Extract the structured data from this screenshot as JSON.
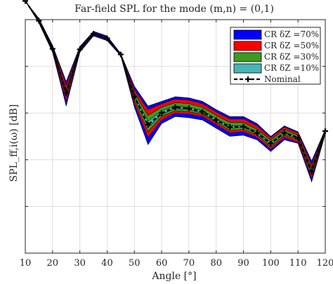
{
  "chart_data": {
    "type": "line",
    "title": "Far-field SPL for the mode (m,n) = (0,1)",
    "xlabel": "Angle [°]",
    "ylabel": "SPL_ff,i(ω) [dB]",
    "xlim": [
      10,
      120
    ],
    "ylim": [
      0,
      10
    ],
    "x_ticks": [
      10,
      20,
      30,
      40,
      50,
      60,
      70,
      80,
      90,
      100,
      110,
      120
    ],
    "y_tick_values": [
      0,
      2,
      4,
      6,
      8
    ],
    "grid": true,
    "legend_position": "top-right",
    "x": [
      10,
      15,
      20,
      25,
      30,
      35,
      40,
      45,
      50,
      55,
      60,
      65,
      70,
      75,
      80,
      85,
      90,
      95,
      100,
      105,
      110,
      115,
      120
    ],
    "series": [
      {
        "name": "CR δZ =70%",
        "color": "#0000ff",
        "upper": [
          10.8,
          10.05,
          8.9,
          7.35,
          8.85,
          9.5,
          9.3,
          8.55,
          7.15,
          6.3,
          6.5,
          6.7,
          6.65,
          6.5,
          6.15,
          5.85,
          5.85,
          5.55,
          5.0,
          5.45,
          5.2,
          3.95,
          5.3
        ],
        "lower": [
          10.8,
          9.85,
          8.6,
          6.3,
          8.6,
          9.3,
          9.1,
          8.45,
          6.25,
          4.65,
          5.55,
          5.85,
          5.8,
          5.7,
          5.35,
          5.0,
          5.05,
          4.85,
          4.35,
          4.85,
          4.7,
          3.05,
          5.1
        ]
      },
      {
        "name": "CR δZ =50%",
        "color": "#ff0000",
        "upper": [
          10.8,
          10.0,
          8.85,
          7.2,
          8.8,
          9.45,
          9.25,
          8.55,
          7.0,
          6.15,
          6.4,
          6.6,
          6.55,
          6.4,
          6.05,
          5.75,
          5.75,
          5.45,
          4.95,
          5.4,
          5.15,
          3.8,
          5.3
        ],
        "lower": [
          10.8,
          9.9,
          8.65,
          6.5,
          8.65,
          9.35,
          9.15,
          8.5,
          6.4,
          4.95,
          5.7,
          6.0,
          5.95,
          5.85,
          5.5,
          5.15,
          5.2,
          4.95,
          4.45,
          4.95,
          4.75,
          3.2,
          5.15
        ]
      },
      {
        "name": "CR δZ =30%",
        "color": "#3c9a1e",
        "upper": [
          10.8,
          10.0,
          8.8,
          7.0,
          8.78,
          9.42,
          9.22,
          8.53,
          6.85,
          5.9,
          6.25,
          6.45,
          6.4,
          6.25,
          5.9,
          5.6,
          5.6,
          5.3,
          4.85,
          5.3,
          5.05,
          3.65,
          5.28
        ],
        "lower": [
          10.8,
          9.92,
          8.7,
          6.7,
          8.68,
          9.38,
          9.18,
          8.5,
          6.55,
          5.2,
          5.85,
          6.1,
          6.05,
          5.95,
          5.6,
          5.25,
          5.3,
          5.05,
          4.55,
          5.05,
          4.85,
          3.35,
          5.18
        ]
      },
      {
        "name": "CR δZ =10%",
        "color": "#4bb4b4",
        "upper": [
          10.8,
          9.97,
          8.77,
          6.9,
          8.75,
          9.41,
          9.21,
          8.52,
          6.75,
          5.65,
          6.1,
          6.3,
          6.25,
          6.1,
          5.75,
          5.45,
          5.45,
          5.2,
          4.75,
          5.2,
          4.97,
          3.55,
          5.25
        ],
        "lower": [
          10.8,
          9.94,
          8.73,
          6.8,
          8.72,
          9.39,
          9.19,
          8.51,
          6.65,
          5.4,
          5.95,
          6.2,
          6.15,
          6.0,
          5.65,
          5.35,
          5.4,
          5.1,
          4.65,
          5.12,
          4.9,
          3.45,
          5.22
        ]
      },
      {
        "name": "Nominal",
        "color": "#000000",
        "style": "dashed-plus",
        "values": [
          10.8,
          9.95,
          8.75,
          6.85,
          8.73,
          9.4,
          9.2,
          8.51,
          6.7,
          5.5,
          6.0,
          6.25,
          6.2,
          6.05,
          5.7,
          5.4,
          5.42,
          5.15,
          4.7,
          5.15,
          4.93,
          3.5,
          5.23
        ]
      }
    ]
  }
}
